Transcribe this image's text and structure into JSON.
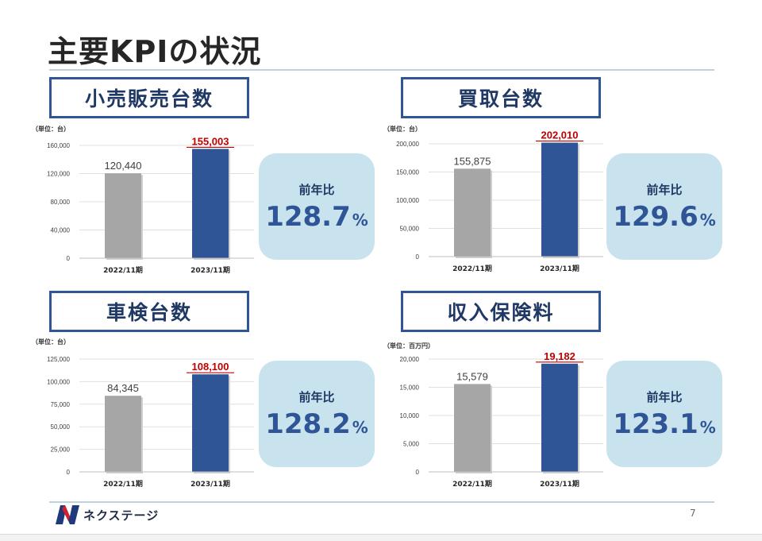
{
  "page": {
    "title": "主要KPIの状況",
    "page_number": "7"
  },
  "logo": {
    "text": "ネクステージ"
  },
  "colors": {
    "prev_bar": "#a6a6a6",
    "curr_bar": "#2f5597",
    "highlight_text": "#c00000",
    "ratio_bg": "#c9e3ee",
    "title_border": "#2f5597"
  },
  "panels": [
    {
      "title": "小売販売台数",
      "unit": "（単位：台）",
      "ratio_label": "前年比",
      "ratio_value": "128.7",
      "ratio_suffix": "%"
    },
    {
      "title": "買取台数",
      "unit": "（単位：台）",
      "ratio_label": "前年比",
      "ratio_value": "129.6",
      "ratio_suffix": "%"
    },
    {
      "title": "車検台数",
      "unit": "（単位：台）",
      "ratio_label": "前年比",
      "ratio_value": "128.2",
      "ratio_suffix": "%"
    },
    {
      "title": "収入保険料",
      "unit": "（単位：百万円）",
      "ratio_label": "前年比",
      "ratio_value": "123.1",
      "ratio_suffix": "%"
    }
  ],
  "chart_data": [
    {
      "type": "bar",
      "title": "小売販売台数",
      "categories": [
        "2022/11期",
        "2023/11期"
      ],
      "values": [
        120440,
        155003
      ],
      "labels": [
        "120,440",
        "155,003"
      ],
      "ylim": [
        0,
        160000
      ],
      "yticks": [
        0,
        40000,
        80000,
        120000,
        160000
      ],
      "ytick_labels": [
        "0",
        "40,000",
        "80,000",
        "120,000",
        "160,000"
      ]
    },
    {
      "type": "bar",
      "title": "買取台数",
      "categories": [
        "2022/11期",
        "2023/11期"
      ],
      "values": [
        155875,
        202010
      ],
      "labels": [
        "155,875",
        "202,010"
      ],
      "ylim": [
        0,
        200000
      ],
      "yticks": [
        0,
        50000,
        100000,
        150000,
        200000
      ],
      "ytick_labels": [
        "0",
        "50,000",
        "100,000",
        "150,000",
        "200,000"
      ]
    },
    {
      "type": "bar",
      "title": "車検台数",
      "categories": [
        "2022/11期",
        "2023/11期"
      ],
      "values": [
        84345,
        108100
      ],
      "labels": [
        "84,345",
        "108,100"
      ],
      "ylim": [
        0,
        125000
      ],
      "yticks": [
        0,
        25000,
        50000,
        75000,
        100000,
        125000
      ],
      "ytick_labels": [
        "0",
        "25,000",
        "50,000",
        "75,000",
        "100,000",
        "125,000"
      ]
    },
    {
      "type": "bar",
      "title": "収入保険料",
      "categories": [
        "2022/11期",
        "2023/11期"
      ],
      "values": [
        15579,
        19182
      ],
      "labels": [
        "15,579",
        "19,182"
      ],
      "ylim": [
        0,
        20000
      ],
      "yticks": [
        0,
        5000,
        10000,
        15000,
        20000
      ],
      "ytick_labels": [
        "0",
        "5,000",
        "10,000",
        "15,000",
        "20,000"
      ]
    }
  ]
}
